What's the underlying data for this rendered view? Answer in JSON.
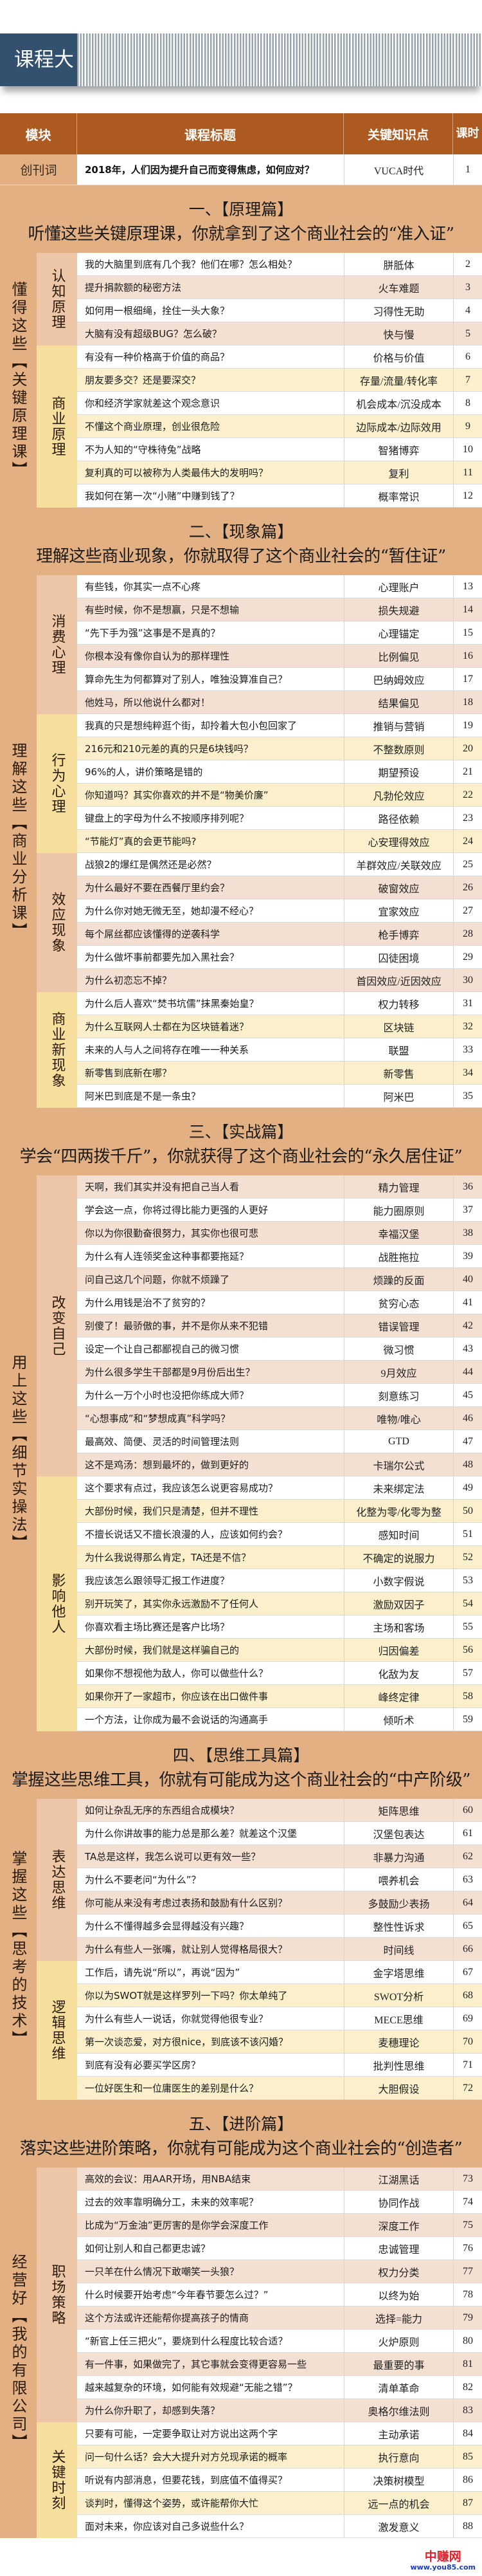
{
  "page_title": "课程大纲",
  "header": {
    "module": "模块",
    "title": "课程标题",
    "key": "关键知识点",
    "hours_line1": "课",
    "hours_line2": "时"
  },
  "intro": {
    "module": "创刊词",
    "title": "2018年，人们因为提升自己而变得焦虑，如何应对？",
    "key": "VUCA时代",
    "n": "1"
  },
  "colors": {
    "header": "#ad5a20",
    "section_band": "#e3b083",
    "banner_blue": "#33506f",
    "group_peach": "#ecc6a6",
    "group_yellow": "#f6df9c"
  },
  "sections": [
    {
      "title": "一、【原理篇】",
      "subtitle": "听懂这些关键原理课，你就拿到了这个商业社会的“准入证”",
      "module": "懂得这些【关键原理课】",
      "groups": [
        {
          "name": "认知原理",
          "rows": [
            {
              "t": "我的大脑里到底有几个我？他们在哪？怎么相处？",
              "k": "胼胝体",
              "n": "2"
            },
            {
              "t": "提升捐款额的秘密方法",
              "k": "火车难题",
              "n": "3"
            },
            {
              "t": "如何用一根细绳，拴住一头大象？",
              "k": "习得性无助",
              "n": "4"
            },
            {
              "t": "大脑有没有超级BUG？怎么破？",
              "k": "快与慢",
              "n": "5"
            }
          ]
        },
        {
          "name": "商业原理",
          "rows": [
            {
              "t": "有没有一种价格高于价值的商品？",
              "k": "价格与价值",
              "n": "6"
            },
            {
              "t": "朋友要多交？还是要深交？",
              "k": "存量/流量/转化率",
              "n": "7"
            },
            {
              "t": "你和经济学家就差这个观念意识",
              "k": "机会成本/沉没成本",
              "n": "8"
            },
            {
              "t": "不懂这个商业原理，创业很危险",
              "k": "边际成本/边际效用",
              "n": "9"
            },
            {
              "t": "不为人知的“守株待兔”战略",
              "k": "智猪博弈",
              "n": "10"
            },
            {
              "t": "复利真的可以被称为人类最伟大的发明吗？",
              "k": "复利",
              "n": "11"
            },
            {
              "t": "我如何在第一次“小赌”中赚到钱了？",
              "k": "概率常识",
              "n": "12"
            }
          ]
        }
      ]
    },
    {
      "title": "二、【现象篇】",
      "subtitle": "理解这些商业现象，你就取得了这个商业社会的“暂住证”",
      "module": "理解这些【商业分析课】",
      "groups": [
        {
          "name": "消费心理",
          "rows": [
            {
              "t": "有些钱，你其实一点不心疼",
              "k": "心理账户",
              "n": "13"
            },
            {
              "t": "有些时候，你不是想赢，只是不想输",
              "k": "损失规避",
              "n": "14"
            },
            {
              "t": "“先下手为强”这事是不是真的？",
              "k": "心理锚定",
              "n": "15"
            },
            {
              "t": "你根本没有像你自认为的那样理性",
              "k": "比例偏见",
              "n": "16"
            },
            {
              "t": "算命先生为何都算对了别人，唯独没算准自己？",
              "k": "巴纳姆效应",
              "n": "17"
            },
            {
              "t": "他姓马，所以他说什么都对！",
              "k": "结果偏见",
              "n": "18"
            }
          ]
        },
        {
          "name": "行为心理",
          "rows": [
            {
              "t": "我真的只是想纯粹逛个街，却拎着大包小包回家了",
              "k": "推销与营销",
              "n": "19"
            },
            {
              "t": "216元和210元差的真的只是6块钱吗？",
              "k": "不整数原则",
              "n": "20"
            },
            {
              "t": "96%的人，讲价策略是错的",
              "k": "期望预设",
              "n": "21"
            },
            {
              "t": "你知道吗？其实你喜欢的并不是“物美价廉”",
              "k": "凡勃伦效应",
              "n": "22"
            },
            {
              "t": "键盘上的字母为什么不按顺序排列呢？",
              "k": "路径依赖",
              "n": "23"
            },
            {
              "t": "“节能灯”真的会更节能吗?",
              "k": "心安理得效应",
              "n": "24"
            }
          ]
        },
        {
          "name": "效应现象",
          "rows": [
            {
              "t": "战狼2的爆红是偶然还是必然？",
              "k": "羊群效应/关联效应",
              "n": "25"
            },
            {
              "t": "为什么最好不要在西餐厅里约会？",
              "k": "破窗效应",
              "n": "26"
            },
            {
              "t": "为什么你对她无微无至，她却漫不经心？",
              "k": "宜家效应",
              "n": "27"
            },
            {
              "t": "每个屌丝都应该懂得的逆袭科学",
              "k": "枪手博弈",
              "n": "28"
            },
            {
              "t": "为什么做坏事前都要先加入黑社会？",
              "k": "囚徒困境",
              "n": "29"
            },
            {
              "t": "为什么初恋忘不掉？",
              "k": "首因效应/近因效应",
              "n": "30"
            }
          ]
        },
        {
          "name": "商业新现象",
          "rows": [
            {
              "t": "为什么后人喜欢“焚书坑儒”抹黑秦始皇？",
              "k": "权力转移",
              "n": "31"
            },
            {
              "t": "为什么互联网人士都在为区块链着迷？",
              "k": "区块链",
              "n": "32"
            },
            {
              "t": "未来的人与人之间将存在唯一一种关系",
              "k": "联盟",
              "n": "33"
            },
            {
              "t": "新零售到底新在哪？",
              "k": "新零售",
              "n": "34"
            },
            {
              "t": "阿米巴到底是不是一条虫？",
              "k": "阿米巴",
              "n": "35"
            }
          ]
        }
      ]
    },
    {
      "title": "三、【实战篇】",
      "subtitle": "学会“四两拨千斤”，你就获得了这个商业社会的“永久居住证”",
      "module": "用上这些【细节实操法】",
      "groups": [
        {
          "name": "改变自己",
          "rows": [
            {
              "t": "天啊，我们其实并没有把自己当人看",
              "k": "精力管理",
              "n": "36"
            },
            {
              "t": "学会这一点，你将过得比能力更强的人更好",
              "k": "能力圈原则",
              "n": "37"
            },
            {
              "t": "你以为你很勤奋很努力，其实你也很可悲",
              "k": "幸福汉堡",
              "n": "38"
            },
            {
              "t": "为什么有人连领奖金这种事都要拖延？",
              "k": "战胜拖拉",
              "n": "39"
            },
            {
              "t": "问自己这几个问题，你就不烦躁了",
              "k": "烦躁的反面",
              "n": "40"
            },
            {
              "t": "为什么用钱是治不了贫穷的？",
              "k": "贫穷心态",
              "n": "41"
            },
            {
              "t": "别傻了！最骄傲的事，并不是你从来不犯错",
              "k": "错误管理",
              "n": "42"
            },
            {
              "t": "设定一个让自己都鄙视自己的微习惯",
              "k": "微习惯",
              "n": "43"
            },
            {
              "t": "为什么很多学生干部都是9月份后出生？",
              "k": "9月效应",
              "n": "44"
            },
            {
              "t": "为什么一万个小时也没把你练成大师？",
              "k": "刻意练习",
              "n": "45"
            },
            {
              "t": "“心想事成”和“梦想成真”科学吗？",
              "k": "唯物/唯心",
              "n": "46"
            },
            {
              "t": "最高效、简便、灵活的时间管理法则",
              "k": "GTD",
              "n": "47"
            },
            {
              "t": "这不是鸡汤：想到最坏的，做到更好的",
              "k": "卡瑞尔公式",
              "n": "48"
            }
          ]
        },
        {
          "name": "影响他人",
          "rows": [
            {
              "t": "这个要求有点过，我应该怎么说更容易成功？",
              "k": "未来绑定法",
              "n": "49"
            },
            {
              "t": "大部份时候，我们只是清楚，但并不理性",
              "k": "化整为零/化零为整",
              "n": "50"
            },
            {
              "t": "不擅长说话又不擅长浪漫的人，应该如何约会？",
              "k": "感知时间",
              "n": "51"
            },
            {
              "t": "为什么我说得那么肯定，TA还是不信？",
              "k": "不确定的说服力",
              "n": "52"
            },
            {
              "t": "我应该怎么跟领导汇报工作进度？",
              "k": "小数字假说",
              "n": "53"
            },
            {
              "t": "别开玩笑了，其实你永远激励不了任何人",
              "k": "激励双因子",
              "n": "54"
            },
            {
              "t": "你喜欢看主场比赛还是客户比场？",
              "k": "主场和客场",
              "n": "55"
            },
            {
              "t": "大部份时候，我们就是这样骗自己的",
              "k": "归因偏差",
              "n": "56"
            },
            {
              "t": "如果你不想视他为敌人，你可以做些什么？",
              "k": "化敌为友",
              "n": "57"
            },
            {
              "t": "如果你开了一家超市，你应该在出口做件事",
              "k": "峰终定律",
              "n": "58"
            },
            {
              "t": "一个方法，让你成为最不会说话的沟通高手",
              "k": "倾听术",
              "n": "59"
            }
          ]
        }
      ]
    },
    {
      "title": "四、【思维工具篇】",
      "subtitle": "掌握这些思维工具，你就有可能成为这个商业社会的“中产阶级”",
      "module": "掌握这些【思考的技术】",
      "groups": [
        {
          "name": "表达思维",
          "rows": [
            {
              "t": "如何让杂乱无序的东西组合成模块？",
              "k": "矩阵思维",
              "n": "60"
            },
            {
              "t": "为什么你讲故事的能力总是那么差？就差这个汉堡",
              "k": "汉堡包表达",
              "n": "61"
            },
            {
              "t": "TA总是这样，我怎么说可以更有效一些？",
              "k": "非暴力沟通",
              "n": "62"
            },
            {
              "t": "为什么不要老问“为什么”？",
              "k": "喂养机会",
              "n": "63"
            },
            {
              "t": "你可能从来没有考虑过表扬和鼓励有什么区别？",
              "k": "多鼓励少表扬",
              "n": "64"
            },
            {
              "t": "为什么不懂得越多会显得越没有兴趣？",
              "k": "整性性诉求",
              "n": "65"
            },
            {
              "t": "为什么有些人一张嘴，就让别人觉得格局很大？",
              "k": "时间线",
              "n": "66"
            }
          ]
        },
        {
          "name": "逻辑思维",
          "rows": [
            {
              "t": "工作后，请先说“所以”，再说“因为”",
              "k": "金字塔思维",
              "n": "67"
            },
            {
              "t": "你以为SWOT就是这样罗列一下吗？你太单纯了",
              "k": "SWOT分析",
              "n": "68"
            },
            {
              "t": "为什么有些人一说话，你就觉得他很专业？",
              "k": "MECE思维",
              "n": "69"
            },
            {
              "t": "第一次谈恋爱，对方很nice，到底该不该闪婚？",
              "k": "麦穗理论",
              "n": "70"
            },
            {
              "t": "到底有没有必要买学区房？",
              "k": "批判性思维",
              "n": "71"
            },
            {
              "t": "一位好医生和一位庸医生的差别是什么？",
              "k": "大胆假设",
              "n": "72"
            }
          ]
        }
      ]
    },
    {
      "title": "五、【进阶篇】",
      "subtitle": "落实这些进阶策略，你就有可能成为这个商业社会的“创造者”",
      "module": "经营好【我的有限公司】",
      "groups": [
        {
          "name": "职场策略",
          "rows": [
            {
              "t": "高效的会议：用AAR开场，用NBA结束",
              "k": "江湖黑话",
              "n": "73"
            },
            {
              "t": "过去的效率靠明确分工，未来的效率呢？",
              "k": "协同作战",
              "n": "74"
            },
            {
              "t": "比成为“万金油”更厉害的是你学会深度工作",
              "k": "深度工作",
              "n": "75"
            },
            {
              "t": "如何让别人和自己都更忠诚？",
              "k": "忠诚管理",
              "n": "76"
            },
            {
              "t": "一只羊在什么情况下敢嘲笑一头狼？",
              "k": "权力分类",
              "n": "77"
            },
            {
              "t": "什么时候要开始考虑“今年春节要怎么过？”",
              "k": "以终为始",
              "n": "78"
            },
            {
              "t": "这个方法或许还能帮你提高孩子的情商",
              "k": "选择=能力",
              "n": "79"
            },
            {
              "t": "“新官上任三把火”，要烧到什么程度比较合适？",
              "k": "火炉原则",
              "n": "80"
            },
            {
              "t": "有一件事，如果做完了，其它事就会变得更容易一些",
              "k": "最重要的事",
              "n": "81"
            },
            {
              "t": "越来越复杂的环境，如何能有效规避“无能之错”？",
              "k": "清单革命",
              "n": "82"
            },
            {
              "t": "为什么你升职了，却感到失落？",
              "k": "奥格尔维法则",
              "n": "83"
            }
          ]
        },
        {
          "name": "关键时刻",
          "rows": [
            {
              "t": "只要有可能，一定要争取让对方说出这两个字",
              "k": "主动承诺",
              "n": "84"
            },
            {
              "t": "问一句什么话？会大大提升对方兑现承诺的概率",
              "k": "执行意向",
              "n": "85"
            },
            {
              "t": "听说有内部消息，但要花钱，到底值不值得买？",
              "k": "决策树模型",
              "n": "86"
            },
            {
              "t": "谈判时，懂得这个姿势，或许能帮你大忙",
              "k": "远一点的机会",
              "n": "87"
            },
            {
              "t": "面对未来，你应该对自己多说些什么？",
              "k": "激发意义",
              "n": "88"
            }
          ]
        }
      ]
    }
  ],
  "watermark": {
    "name": "中赚网",
    "url": "www.you85.com"
  }
}
